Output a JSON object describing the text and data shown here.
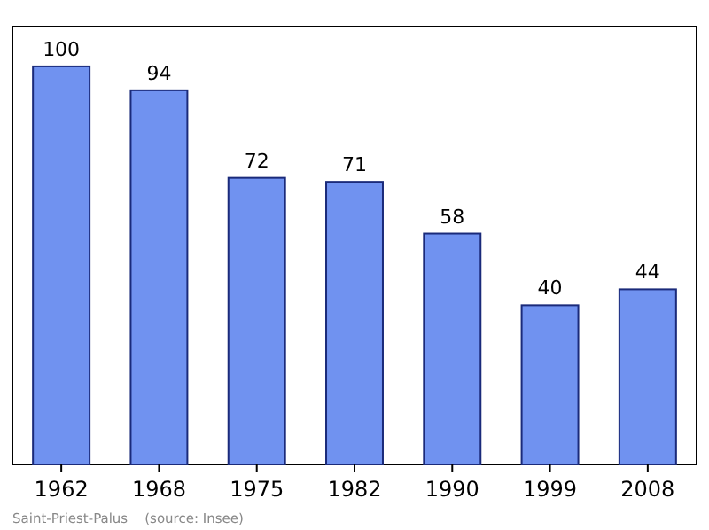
{
  "chart_data": {
    "type": "bar",
    "categories": [
      "1962",
      "1968",
      "1975",
      "1982",
      "1990",
      "1999",
      "2008"
    ],
    "values": [
      100,
      94,
      72,
      71,
      58,
      40,
      44
    ],
    "color": "#7092f0",
    "data_labels": true,
    "annotations": [
      "Saint-Priest-Palus    (source: Insee)"
    ]
  }
}
